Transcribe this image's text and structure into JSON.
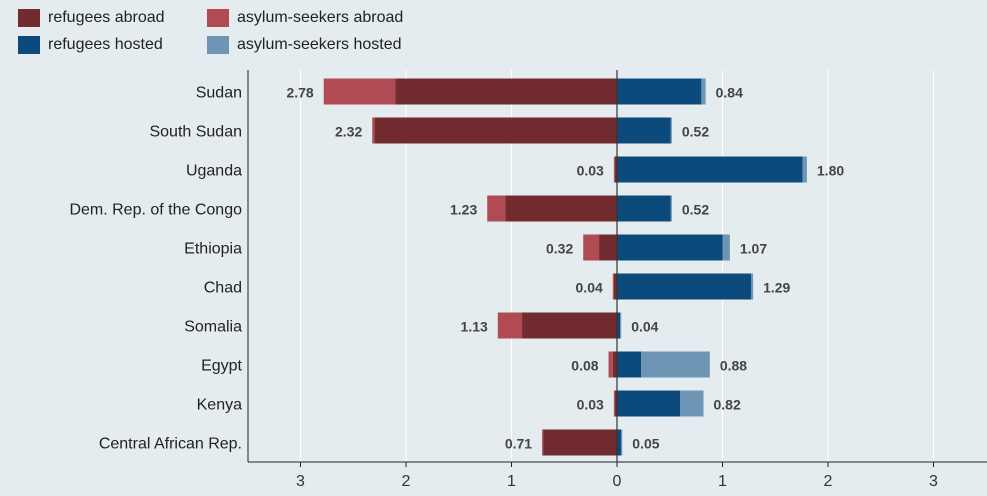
{
  "chart_data": {
    "type": "bar",
    "orientation": "horizontal",
    "stacked": true,
    "diverging": true,
    "categories": [
      "Sudan",
      "South Sudan",
      "Uganda",
      "Dem. Rep. of the Congo",
      "Ethiopia",
      "Chad",
      "Somalia",
      "Egypt",
      "Kenya",
      "Central African Rep."
    ],
    "series": [
      {
        "name": "refugees abroad",
        "color": "#722b2f",
        "side": "left",
        "values": [
          2.1,
          2.3,
          0.02,
          1.06,
          0.17,
          0.03,
          0.9,
          0.04,
          0.02,
          0.7
        ]
      },
      {
        "name": "asylum-seekers abroad",
        "color": "#b04a53",
        "side": "left",
        "values": [
          0.68,
          0.02,
          0.01,
          0.17,
          0.15,
          0.01,
          0.23,
          0.04,
          0.01,
          0.01
        ]
      },
      {
        "name": "refugees hosted",
        "color": "#0c4a7b",
        "side": "right",
        "values": [
          0.8,
          0.51,
          1.76,
          0.51,
          1.0,
          1.27,
          0.03,
          0.23,
          0.6,
          0.04
        ]
      },
      {
        "name": "asylum-seekers hosted",
        "color": "#6f95b5",
        "side": "right",
        "values": [
          0.04,
          0.01,
          0.04,
          0.01,
          0.07,
          0.02,
          0.01,
          0.65,
          0.22,
          0.01
        ]
      }
    ],
    "totals_left": [
      "2.78",
      "2.32",
      "0.03",
      "1.23",
      "0.32",
      "0.04",
      "1.13",
      "0.08",
      "0.03",
      "0.71"
    ],
    "totals_right": [
      "0.84",
      "0.52",
      "1.80",
      "0.52",
      "1.07",
      "1.29",
      "0.04",
      "0.88",
      "0.82",
      "0.05"
    ],
    "xticks": [
      "3",
      "2",
      "1",
      "0",
      "1",
      "2",
      "3"
    ],
    "xlim": [
      -3.5,
      3.5
    ],
    "grid": true,
    "legend_position": "top-left"
  }
}
